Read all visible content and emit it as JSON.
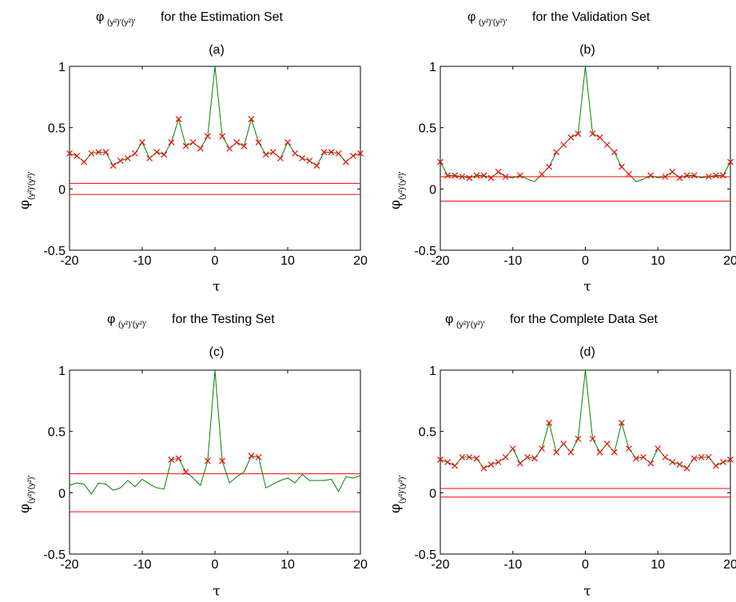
{
  "figure": {
    "panels": [
      {
        "phi": "φ",
        "sub": "(y²)'(y²)'",
        "title_suffix": " for the Estimation Set",
        "tag": "(a)",
        "xlabel": "τ",
        "ylabel_phi": "φ",
        "ylabel_sub": "(y²)'(y²)'"
      },
      {
        "phi": "φ",
        "sub": "(y²)'(y²)'",
        "title_suffix": " for the Validation Set",
        "tag": "(b)",
        "xlabel": "τ",
        "ylabel_phi": "φ",
        "ylabel_sub": "(y²)'(y²)'"
      },
      {
        "phi": "φ",
        "sub": "(y²)'(y²)'",
        "title_suffix": " for the Testing Set",
        "tag": "(c)",
        "xlabel": "τ",
        "ylabel_phi": "φ",
        "ylabel_sub": "(y²)'(y²)'"
      },
      {
        "phi": "φ",
        "sub": "(y²)'(y²)'",
        "title_suffix": " for the Complete Data Set",
        "tag": "(d)",
        "xlabel": "τ",
        "ylabel_phi": "φ",
        "ylabel_sub": "(y²)'(y²)'"
      }
    ]
  },
  "chart_data": [
    {
      "type": "line",
      "panel": "(a)",
      "x": [
        -20,
        -19,
        -18,
        -17,
        -16,
        -15,
        -14,
        -13,
        -12,
        -11,
        -10,
        -9,
        -8,
        -7,
        -6,
        -5,
        -4,
        -3,
        -2,
        -1,
        0,
        1,
        2,
        3,
        4,
        5,
        6,
        7,
        8,
        9,
        10,
        11,
        12,
        13,
        14,
        15,
        16,
        17,
        18,
        19,
        20
      ],
      "y": [
        0.29,
        0.27,
        0.22,
        0.29,
        0.3,
        0.3,
        0.19,
        0.23,
        0.25,
        0.29,
        0.38,
        0.25,
        0.3,
        0.28,
        0.38,
        0.57,
        0.35,
        0.38,
        0.33,
        0.43,
        1.0,
        0.43,
        0.33,
        0.38,
        0.35,
        0.57,
        0.38,
        0.28,
        0.3,
        0.25,
        0.38,
        0.29,
        0.25,
        0.23,
        0.19,
        0.3,
        0.3,
        0.29,
        0.22,
        0.27,
        0.29
      ],
      "significant": [
        true,
        true,
        true,
        true,
        true,
        true,
        true,
        true,
        true,
        true,
        true,
        true,
        true,
        true,
        true,
        true,
        true,
        true,
        true,
        true,
        false,
        true,
        true,
        true,
        true,
        true,
        true,
        true,
        true,
        true,
        true,
        true,
        true,
        true,
        true,
        true,
        true,
        true,
        true,
        true,
        true
      ],
      "confidence_bounds": [
        0.045,
        -0.045
      ],
      "xlim": [
        -20,
        20
      ],
      "ylim": [
        -0.5,
        1
      ],
      "xticks": [
        -20,
        -10,
        0,
        10,
        20
      ],
      "yticks": [
        -0.5,
        0,
        0.5,
        1
      ],
      "colors": {
        "series": "#008000",
        "marker": "#ff0000",
        "bound": "#ff0000"
      }
    },
    {
      "type": "line",
      "panel": "(b)",
      "x": [
        -20,
        -19,
        -18,
        -17,
        -16,
        -15,
        -14,
        -13,
        -12,
        -11,
        -10,
        -9,
        -8,
        -7,
        -6,
        -5,
        -4,
        -3,
        -2,
        -1,
        0,
        1,
        2,
        3,
        4,
        5,
        6,
        7,
        8,
        9,
        10,
        11,
        12,
        13,
        14,
        15,
        16,
        17,
        18,
        19,
        20
      ],
      "y": [
        0.22,
        0.11,
        0.11,
        0.1,
        0.09,
        0.11,
        0.11,
        0.09,
        0.14,
        0.1,
        0.09,
        0.11,
        0.08,
        0.06,
        0.12,
        0.18,
        0.3,
        0.36,
        0.42,
        0.45,
        1.0,
        0.45,
        0.42,
        0.36,
        0.3,
        0.18,
        0.12,
        0.06,
        0.08,
        0.11,
        0.09,
        0.1,
        0.14,
        0.09,
        0.11,
        0.11,
        0.09,
        0.1,
        0.11,
        0.11,
        0.22
      ],
      "significant": [
        true,
        true,
        true,
        true,
        true,
        true,
        true,
        true,
        true,
        true,
        false,
        true,
        false,
        false,
        true,
        true,
        true,
        true,
        true,
        true,
        false,
        true,
        true,
        true,
        true,
        true,
        true,
        false,
        false,
        true,
        false,
        true,
        true,
        true,
        true,
        true,
        false,
        true,
        true,
        true,
        true
      ],
      "confidence_bounds": [
        0.1,
        -0.1
      ],
      "xlim": [
        -20,
        20
      ],
      "ylim": [
        -0.5,
        1
      ],
      "xticks": [
        -20,
        -10,
        0,
        10,
        20
      ],
      "yticks": [
        -0.5,
        0,
        0.5,
        1
      ],
      "colors": {
        "series": "#008000",
        "marker": "#ff0000",
        "bound": "#ff0000"
      }
    },
    {
      "type": "line",
      "panel": "(c)",
      "x": [
        -20,
        -19,
        -18,
        -17,
        -16,
        -15,
        -14,
        -13,
        -12,
        -11,
        -10,
        -9,
        -8,
        -7,
        -6,
        -5,
        -4,
        -3,
        -2,
        -1,
        0,
        1,
        2,
        3,
        4,
        5,
        6,
        7,
        8,
        9,
        10,
        11,
        12,
        13,
        14,
        15,
        16,
        17,
        18,
        19,
        20
      ],
      "y": [
        0.06,
        0.08,
        0.07,
        -0.01,
        0.08,
        0.07,
        0.02,
        0.04,
        0.1,
        0.05,
        0.11,
        0.07,
        0.04,
        0.03,
        0.27,
        0.28,
        0.17,
        0.12,
        0.06,
        0.26,
        1.0,
        0.26,
        0.08,
        0.13,
        0.17,
        0.3,
        0.29,
        0.04,
        0.07,
        0.1,
        0.12,
        0.08,
        0.15,
        0.1,
        0.1,
        0.1,
        0.11,
        0.01,
        0.13,
        0.12,
        0.14
      ],
      "significant": [
        false,
        false,
        false,
        false,
        false,
        false,
        false,
        false,
        false,
        false,
        false,
        false,
        false,
        false,
        true,
        true,
        true,
        false,
        false,
        true,
        false,
        true,
        false,
        false,
        false,
        true,
        true,
        false,
        false,
        false,
        false,
        false,
        false,
        false,
        false,
        false,
        false,
        false,
        false,
        false,
        false
      ],
      "confidence_bounds": [
        0.155,
        -0.155
      ],
      "xlim": [
        -20,
        20
      ],
      "ylim": [
        -0.5,
        1
      ],
      "xticks": [
        -20,
        -10,
        0,
        10,
        20
      ],
      "yticks": [
        -0.5,
        0,
        0.5,
        1
      ],
      "colors": {
        "series": "#008000",
        "marker": "#ff0000",
        "bound": "#ff0000"
      }
    },
    {
      "type": "line",
      "panel": "(d)",
      "x": [
        -20,
        -19,
        -18,
        -17,
        -16,
        -15,
        -14,
        -13,
        -12,
        -11,
        -10,
        -9,
        -8,
        -7,
        -6,
        -5,
        -4,
        -3,
        -2,
        -1,
        0,
        1,
        2,
        3,
        4,
        5,
        6,
        7,
        8,
        9,
        10,
        11,
        12,
        13,
        14,
        15,
        16,
        17,
        18,
        19,
        20
      ],
      "y": [
        0.27,
        0.25,
        0.22,
        0.29,
        0.29,
        0.28,
        0.2,
        0.23,
        0.25,
        0.29,
        0.36,
        0.24,
        0.29,
        0.28,
        0.36,
        0.57,
        0.33,
        0.4,
        0.33,
        0.44,
        1.0,
        0.44,
        0.33,
        0.4,
        0.33,
        0.57,
        0.36,
        0.28,
        0.29,
        0.24,
        0.36,
        0.29,
        0.25,
        0.23,
        0.2,
        0.28,
        0.29,
        0.29,
        0.22,
        0.25,
        0.27
      ],
      "significant": [
        true,
        true,
        true,
        true,
        true,
        true,
        true,
        true,
        true,
        true,
        true,
        true,
        true,
        true,
        true,
        true,
        true,
        true,
        true,
        true,
        false,
        true,
        true,
        true,
        true,
        true,
        true,
        true,
        true,
        true,
        true,
        true,
        true,
        true,
        true,
        true,
        true,
        true,
        true,
        true,
        true
      ],
      "confidence_bounds": [
        0.035,
        -0.035
      ],
      "xlim": [
        -20,
        20
      ],
      "ylim": [
        -0.5,
        1
      ],
      "xticks": [
        -20,
        -10,
        0,
        10,
        20
      ],
      "yticks": [
        -0.5,
        0,
        0.5,
        1
      ],
      "colors": {
        "series": "#008000",
        "marker": "#ff0000",
        "bound": "#ff0000"
      }
    }
  ]
}
